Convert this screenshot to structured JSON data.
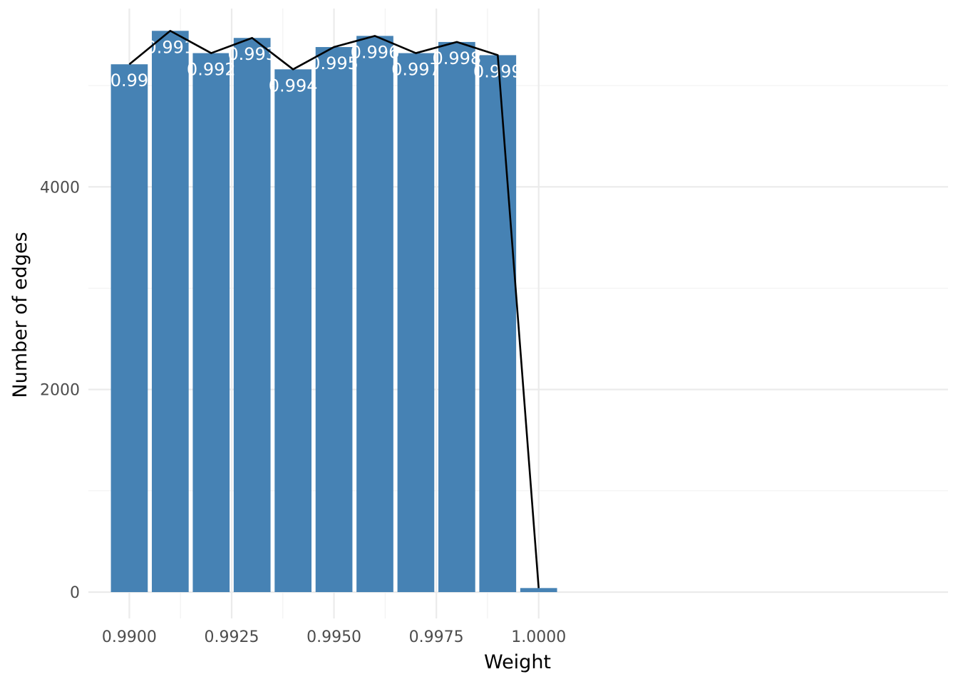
{
  "chart_data": {
    "type": "bar",
    "xlabel": "Weight",
    "ylabel": "Number of edges",
    "x": [
      0.99,
      0.991,
      0.992,
      0.993,
      0.994,
      0.995,
      0.996,
      0.997,
      0.998,
      0.999,
      1.0
    ],
    "values": [
      5210,
      5540,
      5320,
      5470,
      5160,
      5380,
      5490,
      5320,
      5430,
      5300,
      40
    ],
    "data_labels": [
      "0.99",
      "0.991",
      "0.992",
      "0.993",
      "0.994",
      "0.995",
      "0.996",
      "0.997",
      "0.998",
      "0.999",
      ""
    ],
    "overlay_line": {
      "type": "line",
      "x": [
        0.99,
        0.991,
        0.992,
        0.993,
        0.994,
        0.995,
        0.996,
        0.997,
        0.998,
        0.999,
        1.0
      ],
      "values": [
        5210,
        5540,
        5320,
        5470,
        5160,
        5380,
        5490,
        5320,
        5430,
        5300,
        40
      ]
    },
    "xlim": [
      0.989,
      1.01
    ],
    "ylim": [
      -260,
      5760
    ],
    "x_ticks": [
      0.99,
      0.9925,
      0.995,
      0.9975,
      1.0
    ],
    "x_tick_labels": [
      "0.9900",
      "0.9925",
      "0.9950",
      "0.9975",
      "1.0000"
    ],
    "y_ticks": [
      0,
      2000,
      4000
    ],
    "y_tick_labels": [
      "0",
      "2000",
      "4000"
    ],
    "y_minor_ticks": [
      1000,
      3000,
      5000
    ],
    "x_minor_ticks": [
      0.99125,
      0.99375,
      0.99625,
      0.99875
    ],
    "grid": true,
    "colors": {
      "bar": "#4682b4",
      "line": "#000000",
      "label": "#ffffff"
    }
  }
}
